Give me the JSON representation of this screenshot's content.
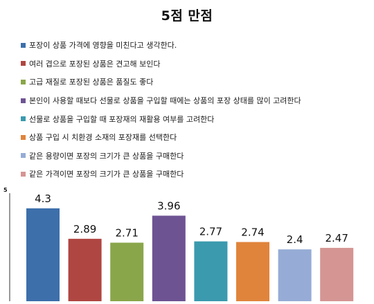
{
  "chart_data": {
    "type": "bar",
    "title": "5점 만점",
    "ylim": [
      0,
      5
    ],
    "y_tick_labels": [
      "5"
    ],
    "grid": false,
    "legend_position": "top",
    "series": [
      {
        "name": "포장이 상품 가격에 영향을 미친다고 생각한다.",
        "value": 4.3,
        "label": "4.3",
        "color": "#3d6fab"
      },
      {
        "name": "여러 겹으로 포장된 상품은 견고해 보인다",
        "value": 2.89,
        "label": "2.89",
        "color": "#b04642"
      },
      {
        "name": "고급 재질로 포장된 상품은 품질도 좋다",
        "value": 2.71,
        "label": "2.71",
        "color": "#8aa64a"
      },
      {
        "name": "본인이 사용할 때보다 선물로 상품을 구입할 때에는 상품의 포장 상태를 많이 고려한다",
        "value": 3.96,
        "label": "3.96",
        "color": "#6e5393"
      },
      {
        "name": "선물로 상품을 구입할 때 포장재의 재활용 여부를 고려한다",
        "value": 2.77,
        "label": "2.77",
        "color": "#3b9aae"
      },
      {
        "name": "상품 구입 시 치환경 소재의 포장재를 선택한다",
        "value": 2.74,
        "label": "2.74",
        "color": "#e0843b"
      },
      {
        "name": "같은 용량이면 포장의 크기가 큰 상품을 구매한다",
        "value": 2.4,
        "label": "2.4",
        "color": "#96acd6"
      },
      {
        "name": "같은 가격이면 포장의 크기가 큰 상품을 구매한다",
        "value": 2.47,
        "label": "2.47",
        "color": "#d59593"
      }
    ]
  }
}
